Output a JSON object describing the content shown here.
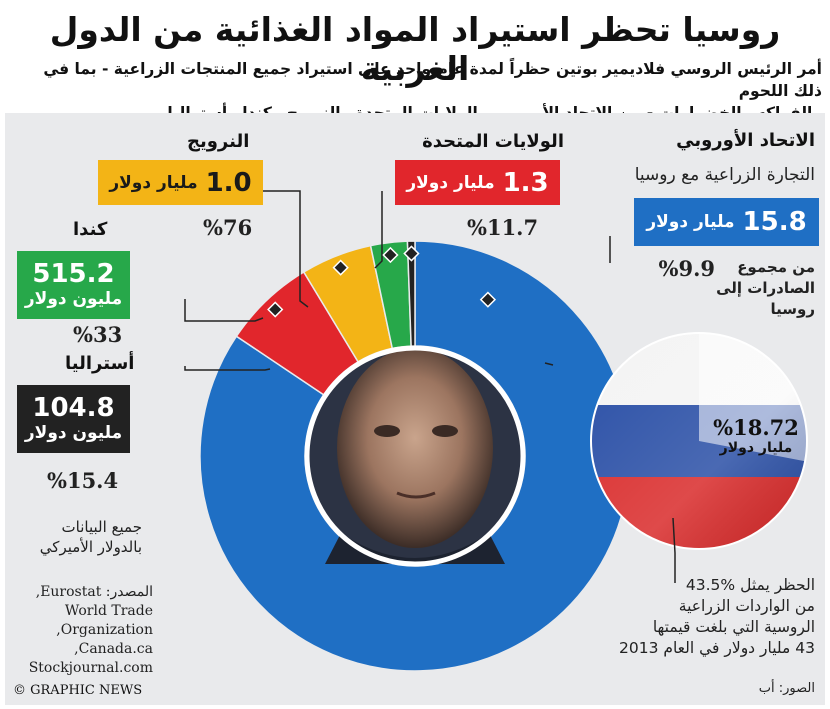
{
  "title": "روسيا تحظر استيراد المواد الغذائية من الدول الغربية",
  "subtitle_line1": "أمر الرئيس الروسي فلاديمير بوتين حظراً لمدة عام واحد على استيراد جميع المنتجات الزراعية - بما في ذلك اللحوم",
  "subtitle_line2": "والفواكه والخضراوات - من الاتحاد الأوروبي والولايات المتحدة والنرويج وكندا وأستراليا",
  "header_note": "التجارة الزراعية مع روسيا",
  "colors": {
    "eu": "#1f6fc4",
    "us": "#e1262c",
    "norway": "#f3b416",
    "canada": "#27a84a",
    "australia": "#222222"
  },
  "chart_data": {
    "type": "pie",
    "title": "التجارة الزراعية مع روسيا",
    "slices": [
      {
        "key": "eu",
        "label": "الاتحاد الأوروبي",
        "value_label": "15.8",
        "unit_label": "مليار دولار",
        "pct_label": "%9.9",
        "pct_note": "من مجموع الصادرات إلى روسيا",
        "value_usd_bn": 15.8
      },
      {
        "key": "us",
        "label": "الولايات المتحدة",
        "value_label": "1.3",
        "unit_label": "مليار دولار",
        "pct_label": "%11.7",
        "value_usd_bn": 1.3
      },
      {
        "key": "norway",
        "label": "النرويج",
        "value_label": "1.0",
        "unit_label": "مليار دولار",
        "pct_label": "%76",
        "value_usd_bn": 1.0
      },
      {
        "key": "canada",
        "label": "كندا",
        "value_label": "515.2",
        "unit_label": "مليون دولار",
        "pct_label": "%33",
        "value_usd_bn": 0.5152
      },
      {
        "key": "australia",
        "label": "أستراليا",
        "value_label": "104.8",
        "unit_label": "مليون دولار",
        "pct_label": "%15.4",
        "value_usd_bn": 0.1048
      }
    ],
    "total_share_label": "%18.72",
    "total_share_unit": "مليار دولار",
    "total_share_value_usd_bn": 18.72
  },
  "ban_note": {
    "line1": "الحظر يمثل %43.5",
    "line2": "من الواردات الزراعية",
    "line3": "الروسية التي بلغت قيمتها",
    "line4": "43 مليار دولار في العام 2013"
  },
  "currency_note": {
    "line1": "جميع البيانات",
    "line2": "بالدولار الأميركي"
  },
  "source": {
    "line1": "المصدر: Eurostat,",
    "line2": "World Trade",
    "line3": "Organization,",
    "line4": "Canada.ca,",
    "line5": "Stockjournal.com"
  },
  "credit": "© GRAPHIC NEWS",
  "photo_credit": "الصور: أب"
}
